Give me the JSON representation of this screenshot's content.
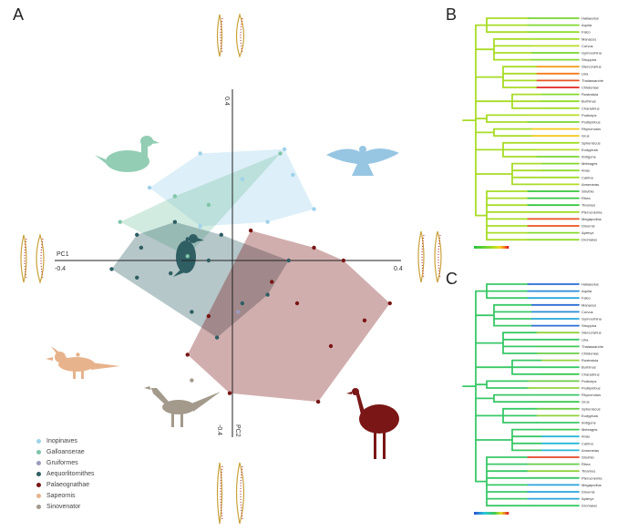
{
  "panel_labels": {
    "a": "A",
    "b": "B",
    "c": "C"
  },
  "chart_data": [
    {
      "type": "scatter",
      "title": "",
      "xlabel": "PC1",
      "ylabel": "PC2",
      "xlim": [
        -0.4,
        0.4
      ],
      "ylim": [
        -0.4,
        0.4
      ],
      "tick_labels": {
        "x_min": "-0.4",
        "x_max": "0.4",
        "y_max": "0.4",
        "y_min": "-0.4"
      },
      "legend_position": "bottom-left",
      "grid": false,
      "series": [
        {
          "name": "Inopinaves",
          "color": "#9fd2ea",
          "hull": true,
          "points": [
            [
              -0.07,
              0.25
            ],
            [
              0.13,
              0.26
            ],
            [
              0.15,
              0.2
            ],
            [
              0.03,
              0.19
            ],
            [
              -0.19,
              0.17
            ],
            [
              -0.07,
              0.08
            ],
            [
              0.09,
              0.09
            ],
            [
              0.2,
              0.12
            ]
          ]
        },
        {
          "name": "Galloanserae",
          "color": "#7fc5a8",
          "hull": true,
          "points": [
            [
              -0.26,
              0.09
            ],
            [
              -0.13,
              0.15
            ],
            [
              0.12,
              0.25
            ],
            [
              -0.1,
              0.01
            ],
            [
              -0.05,
              0.13
            ]
          ]
        },
        {
          "name": "Gruiformes",
          "color": "#9b9bbf",
          "hull": false,
          "points": [
            [
              -0.05,
              -0.13
            ],
            [
              0.02,
              -0.12
            ]
          ]
        },
        {
          "name": "Aequorlitornithes",
          "color": "#2f5e63",
          "hull": true,
          "points": [
            [
              -0.13,
              0.09
            ],
            [
              -0.22,
              0.06
            ],
            [
              -0.21,
              0.03
            ],
            [
              -0.28,
              -0.02
            ],
            [
              -0.22,
              -0.04
            ],
            [
              -0.12,
              0.0
            ],
            [
              -0.02,
              0.06
            ],
            [
              -0.1,
              0.05
            ],
            [
              -0.09,
              -0.12
            ],
            [
              -0.03,
              -0.18
            ],
            [
              0.03,
              -0.1
            ],
            [
              0.09,
              -0.08
            ],
            [
              0.14,
              0.0
            ],
            [
              -0.05,
              0.0
            ],
            [
              -0.14,
              -0.03
            ]
          ]
        },
        {
          "name": "Palaeognathae",
          "color": "#7a1616",
          "hull": true,
          "points": [
            [
              0.05,
              0.07
            ],
            [
              0.2,
              0.03
            ],
            [
              0.27,
              0.0
            ],
            [
              0.38,
              -0.1
            ],
            [
              -0.05,
              -0.13
            ],
            [
              -0.1,
              -0.22
            ],
            [
              0.24,
              -0.2
            ],
            [
              0.32,
              -0.14
            ],
            [
              0.21,
              -0.33
            ],
            [
              0.0,
              -0.31
            ],
            [
              0.1,
              -0.05
            ],
            [
              0.16,
              -0.1
            ]
          ]
        },
        {
          "name": "Sapeornis",
          "color": "#e7b38c",
          "hull": false,
          "points": [
            [
              -0.36,
              -0.22
            ]
          ]
        },
        {
          "name": "Sinovenator",
          "color": "#a39a8c",
          "hull": false,
          "points": [
            [
              -0.09,
              -0.28
            ]
          ]
        }
      ]
    },
    {
      "type": "tree",
      "title": "",
      "taxa": [
        "Haliaeetus",
        "Aquila",
        "Falco",
        "Manacus",
        "Corvus",
        "Gymnorhina",
        "Struppira",
        "Stercorarius",
        "Uria",
        "Thalassarche",
        "Chlidonias",
        "Rostratula",
        "Burhinus",
        "Charadrius",
        "Podiceps",
        "Podilymbus",
        "Rhynchotus",
        "Grus",
        "Spheniscus",
        "Eudyptula",
        "Antigone",
        "Meleagris",
        "Anas",
        "Cairina",
        "Anseranas",
        "Struthio",
        "Rhea",
        "Tinamus",
        "Pterocnemia",
        "Megapodius",
        "Dinornis",
        "Apteryx",
        "Dromaius"
      ]
    },
    {
      "type": "tree",
      "title": "",
      "taxa": [
        "Haliaeetus",
        "Aquila",
        "Falco",
        "Manacus",
        "Corvus",
        "Gymnorhina",
        "Struppira",
        "Stercorarius",
        "Uria",
        "Thalassarche",
        "Chlidonias",
        "Rostratula",
        "Burhinus",
        "Charadrius",
        "Podiceps",
        "Podilymbus",
        "Rhynchotus",
        "Grus",
        "Spheniscus",
        "Eudyptula",
        "Antigone",
        "Meleagris",
        "Anas",
        "Cairina",
        "Anseranas",
        "Struthio",
        "Rhea",
        "Tinamus",
        "Pterocnemia",
        "Megapodius",
        "Dinornis",
        "Apteryx",
        "Dromaius"
      ]
    }
  ]
}
